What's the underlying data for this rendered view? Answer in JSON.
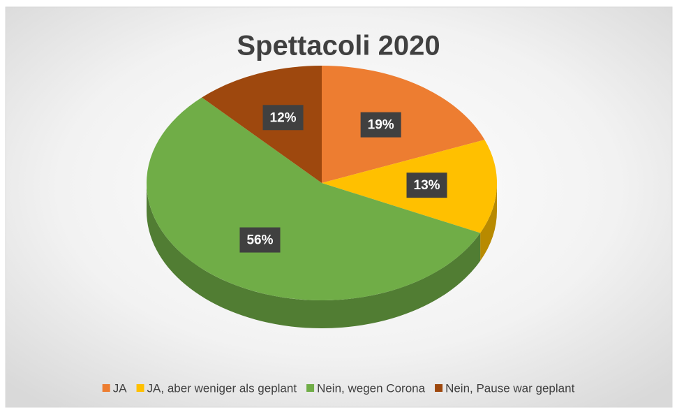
{
  "chart_data": {
    "type": "pie",
    "title": "Spettacoli 2020",
    "categories": [
      "JA",
      "JA, aber weniger als geplant",
      "Nein, wegen Corona",
      "Nein, Pause war geplant"
    ],
    "values": [
      19,
      13,
      56,
      12
    ],
    "value_labels": [
      "19%",
      "13%",
      "56%",
      "12%"
    ],
    "colors": [
      "#ED7D31",
      "#FFC000",
      "#70AD47",
      "#9E480E"
    ],
    "legend": "bottom"
  }
}
